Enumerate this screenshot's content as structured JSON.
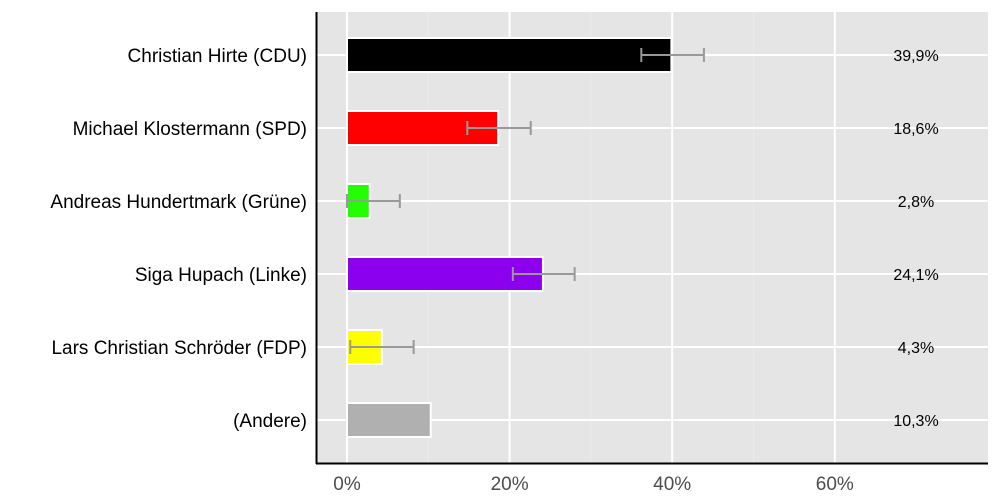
{
  "chart_data": {
    "type": "bar",
    "orientation": "horizontal",
    "title": "",
    "xlabel": "",
    "ylabel": "",
    "xlim": [
      -3.8,
      78.8
    ],
    "x_ticks": [
      0,
      20,
      40,
      60
    ],
    "x_tick_labels": [
      "0%",
      "20%",
      "40%",
      "60%"
    ],
    "x_minor_ticks": [
      10,
      30,
      50
    ],
    "grid": true,
    "legend": null,
    "categories": [
      "Christian Hirte (CDU)",
      "Michael Klostermann (SPD)",
      "Andreas Hundertmark (Grüne)",
      "Siga Hupach (Linke)",
      "Lars Christian Schröder (FDP)",
      "(Andere)"
    ],
    "values": [
      39.9,
      18.6,
      2.8,
      24.1,
      4.3,
      10.3
    ],
    "value_labels": [
      "39,9%",
      "18,6%",
      "2,8%",
      "24,1%",
      "4,3%",
      "10,3%"
    ],
    "colors": [
      "#000000",
      "#ff0000",
      "#22ff00",
      "#8b00ee",
      "#ffff00",
      "#b0b0b0"
    ],
    "error_bars": [
      {
        "low": 36.2,
        "high": 43.9
      },
      {
        "low": 14.8,
        "high": 22.6
      },
      {
        "low": 0.0,
        "high": 6.5
      },
      {
        "low": 20.4,
        "high": 28.0
      },
      {
        "low": 0.4,
        "high": 8.2
      },
      null
    ]
  },
  "style": {
    "panel_bg": "#e5e5e5",
    "grid_major": "#ffffff",
    "grid_minor": "#ebebeb",
    "axis_line": "#000000",
    "bar_outline": "#ffffff",
    "error_bar_color": "#999999"
  }
}
